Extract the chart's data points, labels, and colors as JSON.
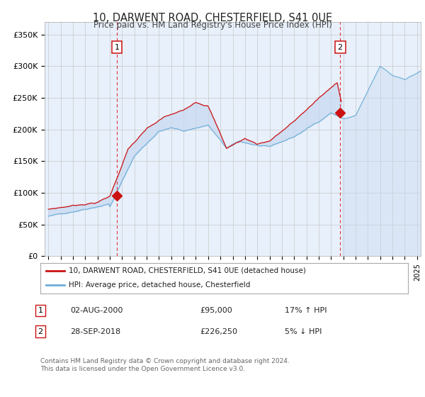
{
  "title": "10, DARWENT ROAD, CHESTERFIELD, S41 0UE",
  "subtitle": "Price paid vs. HM Land Registry's House Price Index (HPI)",
  "ylabel_ticks": [
    "£0",
    "£50K",
    "£100K",
    "£150K",
    "£200K",
    "£250K",
    "£300K",
    "£350K"
  ],
  "ytick_values": [
    0,
    50000,
    100000,
    150000,
    200000,
    250000,
    300000,
    350000
  ],
  "ylim": [
    0,
    370000
  ],
  "xlim_start": 1994.7,
  "xlim_end": 2025.3,
  "sale1_x": 2000.58,
  "sale1_y": 95000,
  "sale2_x": 2018.74,
  "sale2_y": 226250,
  "legend_line1": "10, DARWENT ROAD, CHESTERFIELD, S41 0UE (detached house)",
  "legend_line2": "HPI: Average price, detached house, Chesterfield",
  "table_row1_num": "1",
  "table_row1_date": "02-AUG-2000",
  "table_row1_price": "£95,000",
  "table_row1_hpi": "17% ↑ HPI",
  "table_row2_num": "2",
  "table_row2_date": "28-SEP-2018",
  "table_row2_price": "£226,250",
  "table_row2_hpi": "5% ↓ HPI",
  "footer": "Contains HM Land Registry data © Crown copyright and database right 2024.\nThis data is licensed under the Open Government Licence v3.0.",
  "hpi_color": "#6BAED6",
  "price_color": "#CC1111",
  "bg_color": "#E8F0FB",
  "grid_color": "#C8C8C8",
  "dashed_line_color": "#DD2222",
  "fill_color": "#C6D9F0"
}
